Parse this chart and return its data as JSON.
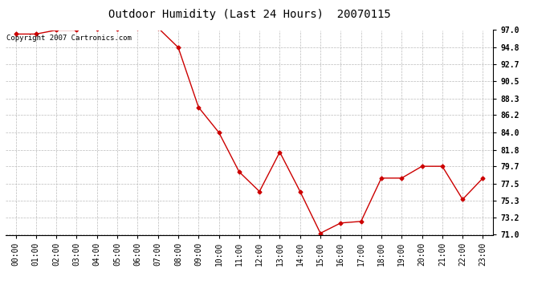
{
  "title": "Outdoor Humidity (Last 24 Hours)  20070115",
  "copyright_text": "Copyright 2007 Cartronics.com",
  "x_labels": [
    "00:00",
    "01:00",
    "02:00",
    "03:00",
    "04:00",
    "05:00",
    "06:00",
    "07:00",
    "08:00",
    "09:00",
    "10:00",
    "11:00",
    "12:00",
    "13:00",
    "14:00",
    "15:00",
    "16:00",
    "17:00",
    "18:00",
    "19:00",
    "20:00",
    "21:00",
    "22:00",
    "23:00"
  ],
  "y_values": [
    96.5,
    96.5,
    97.0,
    97.0,
    97.2,
    97.2,
    97.3,
    97.3,
    94.8,
    87.2,
    84.0,
    79.0,
    76.5,
    81.5,
    76.5,
    71.2,
    72.5,
    72.7,
    78.2,
    78.2,
    79.7,
    79.7,
    75.5,
    78.2
  ],
  "ylim_min": 71.0,
  "ylim_max": 97.0,
  "yticks": [
    71.0,
    73.2,
    75.3,
    77.5,
    79.7,
    81.8,
    84.0,
    86.2,
    88.3,
    90.5,
    92.7,
    94.8,
    97.0
  ],
  "line_color": "#cc0000",
  "marker": "D",
  "marker_size": 2.5,
  "bg_color": "#ffffff",
  "plot_bg_color": "#ffffff",
  "grid_color": "#bbbbbb",
  "title_fontsize": 10,
  "tick_fontsize": 7,
  "copyright_fontsize": 6.5
}
